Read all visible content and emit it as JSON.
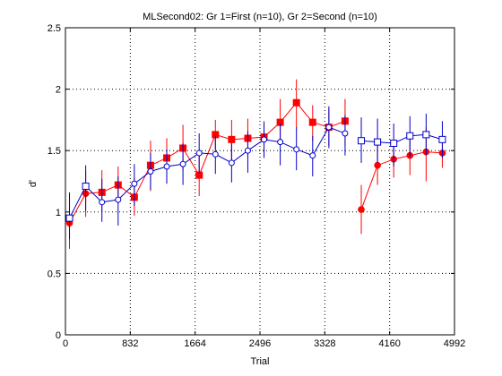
{
  "chart_data": {
    "type": "line",
    "title": "MLSecond02: Gr 1=First (n=10), Gr 2=Second (n=10)",
    "xlabel": "Trial",
    "ylabel": "d'",
    "xlim": [
      0,
      4992
    ],
    "ylim": [
      0,
      2.5
    ],
    "x_ticks": [
      "0",
      "832",
      "1664",
      "2496",
      "3328",
      "4160",
      "4992"
    ],
    "y_ticks": [
      "0",
      "0.5",
      "1",
      "1.5",
      "2",
      "2.5"
    ],
    "grid": true,
    "series": [
      {
        "color": "#ff0000",
        "segments": [
          [
            {
              "x": 52,
              "y": 0.91,
              "lo": 0.7,
              "hi": 1.13,
              "m": "dot"
            },
            {
              "x": 260,
              "y": 1.15,
              "lo": 0.96,
              "hi": 1.34,
              "m": "dot"
            },
            {
              "x": 468,
              "y": 1.16,
              "lo": 1.0,
              "hi": 1.34,
              "m": "sq"
            },
            {
              "x": 676,
              "y": 1.22,
              "lo": 1.07,
              "hi": 1.37,
              "m": "sq"
            },
            {
              "x": 884,
              "y": 1.12,
              "lo": 0.97,
              "hi": 1.28,
              "m": "sq"
            },
            {
              "x": 1092,
              "y": 1.38,
              "lo": 1.17,
              "hi": 1.58,
              "m": "sq"
            },
            {
              "x": 1300,
              "y": 1.44,
              "lo": 1.27,
              "hi": 1.6,
              "m": "sq"
            },
            {
              "x": 1508,
              "y": 1.52,
              "lo": 1.34,
              "hi": 1.71,
              "m": "sq"
            },
            {
              "x": 1716,
              "y": 1.3,
              "lo": 1.13,
              "hi": 1.48,
              "m": "sq"
            },
            {
              "x": 1924,
              "y": 1.63,
              "lo": 1.51,
              "hi": 1.75,
              "m": "sq"
            },
            {
              "x": 2132,
              "y": 1.59,
              "lo": 1.43,
              "hi": 1.75,
              "m": "sq"
            },
            {
              "x": 2340,
              "y": 1.6,
              "lo": 1.45,
              "hi": 1.76,
              "m": "sq"
            },
            {
              "x": 2548,
              "y": 1.61,
              "lo": 1.45,
              "hi": 1.74,
              "m": "sq"
            },
            {
              "x": 2756,
              "y": 1.73,
              "lo": 1.54,
              "hi": 1.92,
              "m": "sq"
            },
            {
              "x": 2964,
              "y": 1.89,
              "lo": 1.68,
              "hi": 2.08,
              "m": "sq"
            },
            {
              "x": 3172,
              "y": 1.73,
              "lo": 1.58,
              "hi": 1.87,
              "m": "sq"
            },
            {
              "x": 3380,
              "y": 1.69,
              "lo": 1.54,
              "hi": 1.84,
              "m": "sq"
            },
            {
              "x": 3588,
              "y": 1.74,
              "lo": 1.54,
              "hi": 1.92,
              "m": "sq"
            }
          ],
          [
            {
              "x": 3796,
              "y": 1.02,
              "lo": 0.82,
              "hi": 1.22,
              "m": "dot"
            },
            {
              "x": 4004,
              "y": 1.38,
              "lo": 1.22,
              "hi": 1.55,
              "m": "dot"
            },
            {
              "x": 4212,
              "y": 1.43,
              "lo": 1.28,
              "hi": 1.58,
              "m": "dot"
            },
            {
              "x": 4420,
              "y": 1.46,
              "lo": 1.3,
              "hi": 1.63,
              "m": "dot"
            },
            {
              "x": 4628,
              "y": 1.49,
              "lo": 1.25,
              "hi": 1.69,
              "m": "dot"
            },
            {
              "x": 4836,
              "y": 1.48,
              "lo": 1.36,
              "hi": 1.59,
              "m": "dot"
            }
          ]
        ]
      },
      {
        "color": "#0000cc",
        "segments": [
          [
            {
              "x": 52,
              "y": 0.95,
              "lo": 0.78,
              "hi": 1.16,
              "m": "sq"
            },
            {
              "x": 260,
              "y": 1.21,
              "lo": 1.01,
              "hi": 1.38,
              "m": "sq"
            },
            {
              "x": 468,
              "y": 1.08,
              "lo": 0.92,
              "hi": 1.27,
              "m": "circ"
            },
            {
              "x": 676,
              "y": 1.1,
              "lo": 0.89,
              "hi": 1.29,
              "m": "circ"
            },
            {
              "x": 884,
              "y": 1.23,
              "lo": 1.05,
              "hi": 1.39,
              "m": "circ"
            },
            {
              "x": 1092,
              "y": 1.33,
              "lo": 1.18,
              "hi": 1.48,
              "m": "circ"
            },
            {
              "x": 1300,
              "y": 1.37,
              "lo": 1.23,
              "hi": 1.51,
              "m": "circ"
            },
            {
              "x": 1508,
              "y": 1.39,
              "lo": 1.22,
              "hi": 1.56,
              "m": "circ"
            },
            {
              "x": 1716,
              "y": 1.48,
              "lo": 1.32,
              "hi": 1.64,
              "m": "circ"
            },
            {
              "x": 1924,
              "y": 1.47,
              "lo": 1.31,
              "hi": 1.62,
              "m": "circ"
            },
            {
              "x": 2132,
              "y": 1.4,
              "lo": 1.24,
              "hi": 1.56,
              "m": "circ"
            },
            {
              "x": 2340,
              "y": 1.5,
              "lo": 1.32,
              "hi": 1.66,
              "m": "circ"
            },
            {
              "x": 2548,
              "y": 1.59,
              "lo": 1.44,
              "hi": 1.73,
              "m": "circ"
            },
            {
              "x": 2756,
              "y": 1.57,
              "lo": 1.38,
              "hi": 1.72,
              "m": "circ"
            },
            {
              "x": 2964,
              "y": 1.51,
              "lo": 1.34,
              "hi": 1.69,
              "m": "circ"
            },
            {
              "x": 3172,
              "y": 1.46,
              "lo": 1.29,
              "hi": 1.62,
              "m": "circ"
            },
            {
              "x": 3380,
              "y": 1.69,
              "lo": 1.52,
              "hi": 1.86,
              "m": "circ"
            },
            {
              "x": 3588,
              "y": 1.64,
              "lo": 1.46,
              "hi": 1.79,
              "m": "circ"
            }
          ],
          [
            {
              "x": 3796,
              "y": 1.58,
              "lo": 1.4,
              "hi": 1.77,
              "m": "sq"
            },
            {
              "x": 4004,
              "y": 1.57,
              "lo": 1.4,
              "hi": 1.76,
              "m": "sq"
            },
            {
              "x": 4212,
              "y": 1.56,
              "lo": 1.37,
              "hi": 1.72,
              "m": "sq"
            },
            {
              "x": 4420,
              "y": 1.62,
              "lo": 1.45,
              "hi": 1.78,
              "m": "sq"
            },
            {
              "x": 4628,
              "y": 1.63,
              "lo": 1.46,
              "hi": 1.8,
              "m": "sq"
            },
            {
              "x": 4836,
              "y": 1.59,
              "lo": 1.44,
              "hi": 1.74,
              "m": "sq"
            }
          ]
        ]
      }
    ]
  }
}
